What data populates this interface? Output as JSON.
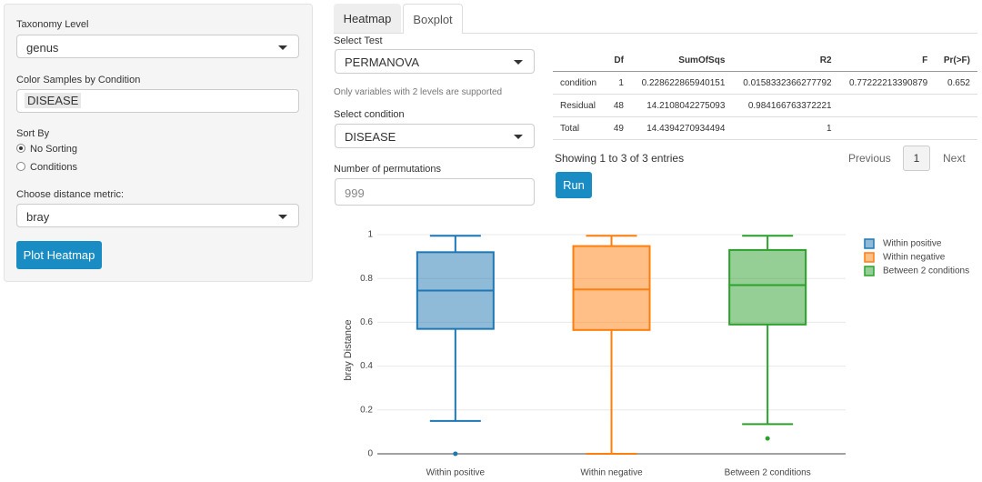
{
  "sidebar": {
    "taxonomy_label": "Taxonomy Level",
    "taxonomy_value": "genus",
    "color_label": "Color Samples by Condition",
    "color_value": "DISEASE",
    "sort_label": "Sort By",
    "sort_options": [
      "No Sorting",
      "Conditions"
    ],
    "distance_label": "Choose distance metric:",
    "distance_value": "bray",
    "button": "Plot Heatmap"
  },
  "tabs": [
    "Heatmap",
    "Boxplot"
  ],
  "controls": {
    "test_label": "Select Test",
    "test_value": "PERMANOVA",
    "note": "Only variables with 2 levels are supported",
    "condition_label": "Select condition",
    "condition_value": "DISEASE",
    "perm_label": "Number of permutations",
    "perm_value": "999",
    "run": "Run"
  },
  "table": {
    "columns": [
      "Df",
      "SumOfSqs",
      "R2",
      "F",
      "Pr(>F)"
    ],
    "rows": [
      [
        "condition",
        "1",
        "0.228622865940151",
        "0.0158332366277792",
        "0.77222213390879",
        "0.652"
      ],
      [
        "Residual",
        "48",
        "14.2108042275093",
        "0.984166763372221"
      ],
      [
        "Total",
        "49",
        "14.4394270934494",
        "1"
      ]
    ],
    "info": "Showing 1 to 3 of 3 entries",
    "pagination": [
      "Previous",
      "1",
      "Next"
    ]
  },
  "chart_data": {
    "type": "box",
    "y_label": "bray Distance",
    "categories": [
      "Within positive",
      "Within negative",
      "Between 2 conditions"
    ],
    "series": [
      {
        "name": "Within positive",
        "color": "#1f77b4",
        "min": 0.15,
        "q1": 0.57,
        "median": 0.745,
        "q3": 0.92,
        "max": 0.995,
        "outliers": [
          0
        ]
      },
      {
        "name": "Within negative",
        "color": "#ff7f0e",
        "min": 0,
        "q1": 0.565,
        "median": 0.75,
        "q3": 0.948,
        "max": 0.995,
        "outliers": []
      },
      {
        "name": "Between 2 conditions",
        "color": "#2ca02c",
        "min": 0.135,
        "q1": 0.59,
        "median": 0.77,
        "q3": 0.93,
        "max": 0.995,
        "outliers": [
          0.07
        ]
      }
    ],
    "ylim": [
      -0.05,
      1.05
    ],
    "yticks": [
      0,
      0.2,
      0.4,
      0.6,
      0.8,
      1
    ],
    "grid": true
  }
}
